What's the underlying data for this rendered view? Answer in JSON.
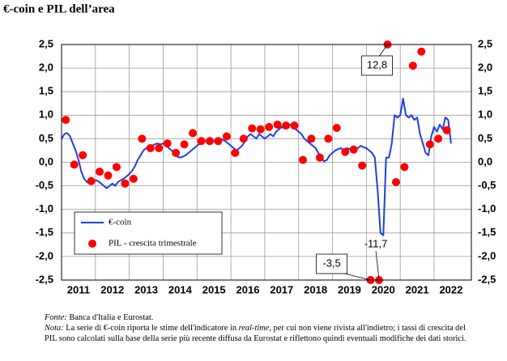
{
  "chart_data": {
    "type": "line",
    "title": "€-coin e PIL dell’area",
    "xlim": [
      2011,
      2023.1
    ],
    "xticks": [
      {
        "value": 2011.5,
        "label": "2011"
      },
      {
        "value": 2012.5,
        "label": "2012"
      },
      {
        "value": 2013.5,
        "label": "2013"
      },
      {
        "value": 2014.5,
        "label": "2014"
      },
      {
        "value": 2015.5,
        "label": "2015"
      },
      {
        "value": 2016.5,
        "label": "2016"
      },
      {
        "value": 2017.5,
        "label": "2017"
      },
      {
        "value": 2018.5,
        "label": "2018"
      },
      {
        "value": 2019.5,
        "label": "2019"
      },
      {
        "value": 2020.5,
        "label": "2020"
      },
      {
        "value": 2021.5,
        "label": "2021"
      },
      {
        "value": 2022.5,
        "label": "2022"
      }
    ],
    "xgrid": [
      2012,
      2013,
      2014,
      2015,
      2016,
      2017,
      2018,
      2019,
      2020,
      2021,
      2022
    ],
    "ylim": [
      -2.5,
      2.5
    ],
    "yticks": [
      {
        "value": -2.5,
        "label": "-2,5"
      },
      {
        "value": -2.0,
        "label": "-2,0"
      },
      {
        "value": -1.5,
        "label": "-1,5"
      },
      {
        "value": -1.0,
        "label": "-1,0"
      },
      {
        "value": -0.5,
        "label": "-0,5"
      },
      {
        "value": 0,
        "label": "0,0"
      },
      {
        "value": 0.5,
        "label": "0,5"
      },
      {
        "value": 1.0,
        "label": "1,0"
      },
      {
        "value": 1.5,
        "label": "1,5"
      },
      {
        "value": 2.0,
        "label": "2,0"
      },
      {
        "value": 2.5,
        "label": "2,5"
      }
    ],
    "y2lim": [
      -2.5,
      2.5
    ],
    "y2ticks": [
      {
        "value": -2.5,
        "label": "-2,5"
      },
      {
        "value": -2.0,
        "label": "-2,0"
      },
      {
        "value": -1.5,
        "label": "-1,5"
      },
      {
        "value": -1.0,
        "label": "-1,0"
      },
      {
        "value": -0.5,
        "label": "-0,5"
      },
      {
        "value": 0,
        "label": "0,0"
      },
      {
        "value": 0.5,
        "label": "0,5"
      },
      {
        "value": 1.0,
        "label": "1,0"
      },
      {
        "value": 1.5,
        "label": "1,5"
      },
      {
        "value": 2.0,
        "label": "2,0"
      },
      {
        "value": 2.5,
        "label": "2,5"
      }
    ],
    "grid": true,
    "legend": "lower-left",
    "series": [
      {
        "name": "€-coin",
        "type": "line",
        "color": "#1f3fe0",
        "x": [
          2011,
          2011.083,
          2011.167,
          2011.25,
          2011.333,
          2011.417,
          2011.5,
          2011.583,
          2011.667,
          2011.75,
          2011.833,
          2011.917,
          2012,
          2012.083,
          2012.167,
          2012.25,
          2012.333,
          2012.417,
          2012.5,
          2012.583,
          2012.667,
          2012.75,
          2012.833,
          2012.917,
          2013,
          2013.083,
          2013.167,
          2013.25,
          2013.333,
          2013.417,
          2013.5,
          2013.583,
          2013.667,
          2013.75,
          2013.833,
          2013.917,
          2014,
          2014.083,
          2014.167,
          2014.25,
          2014.333,
          2014.417,
          2014.5,
          2014.583,
          2014.667,
          2014.75,
          2014.833,
          2014.917,
          2015,
          2015.083,
          2015.167,
          2015.25,
          2015.333,
          2015.417,
          2015.5,
          2015.583,
          2015.667,
          2015.75,
          2015.833,
          2015.917,
          2016,
          2016.083,
          2016.167,
          2016.25,
          2016.333,
          2016.417,
          2016.5,
          2016.583,
          2016.667,
          2016.75,
          2016.833,
          2016.917,
          2017,
          2017.083,
          2017.167,
          2017.25,
          2017.333,
          2017.417,
          2017.5,
          2017.583,
          2017.667,
          2017.75,
          2017.833,
          2017.917,
          2018,
          2018.083,
          2018.167,
          2018.25,
          2018.333,
          2018.417,
          2018.5,
          2018.583,
          2018.667,
          2018.75,
          2018.833,
          2018.917,
          2019,
          2019.083,
          2019.167,
          2019.25,
          2019.333,
          2019.417,
          2019.5,
          2019.583,
          2019.667,
          2019.75,
          2019.833,
          2019.917,
          2020,
          2020.083,
          2020.167,
          2020.25,
          2020.333,
          2020.417,
          2020.5,
          2020.583,
          2020.667,
          2020.75,
          2020.833,
          2020.917,
          2021,
          2021.083,
          2021.167,
          2021.25,
          2021.333,
          2021.417,
          2021.5,
          2021.583,
          2021.667,
          2021.75,
          2021.833,
          2021.917,
          2022,
          2022.083,
          2022.167,
          2022.25,
          2022.333,
          2022.417,
          2022.5
        ],
        "values": [
          0.5,
          0.6,
          0.62,
          0.55,
          0.4,
          0.25,
          0.05,
          -0.2,
          -0.35,
          -0.42,
          -0.45,
          -0.42,
          -0.38,
          -0.4,
          -0.45,
          -0.5,
          -0.55,
          -0.5,
          -0.45,
          -0.5,
          -0.42,
          -0.38,
          -0.35,
          -0.3,
          -0.25,
          -0.18,
          -0.08,
          0.05,
          0.15,
          0.25,
          0.3,
          0.32,
          0.35,
          0.38,
          0.4,
          0.38,
          0.4,
          0.35,
          0.3,
          0.25,
          0.18,
          0.12,
          0.1,
          0.12,
          0.15,
          0.2,
          0.25,
          0.3,
          0.35,
          0.4,
          0.42,
          0.45,
          0.45,
          0.42,
          0.45,
          0.48,
          0.5,
          0.48,
          0.45,
          0.4,
          0.35,
          0.3,
          0.25,
          0.3,
          0.35,
          0.45,
          0.55,
          0.6,
          0.55,
          0.5,
          0.6,
          0.55,
          0.5,
          0.55,
          0.6,
          0.55,
          0.65,
          0.7,
          0.75,
          0.72,
          0.78,
          0.8,
          0.75,
          0.7,
          0.65,
          0.6,
          0.5,
          0.45,
          0.4,
          0.35,
          0.3,
          0.2,
          0.1,
          0.02,
          0.05,
          0.15,
          0.2,
          0.25,
          0.28,
          0.3,
          0.25,
          0.3,
          0.28,
          0.3,
          0.25,
          0.3,
          0.35,
          0.32,
          0.3,
          0.25,
          0.2,
          0.1,
          -0.6,
          -1.5,
          -1.55,
          0.1,
          0.1,
          0.4,
          1.0,
          0.95,
          1.0,
          1.35,
          1.0,
          0.95,
          1.0,
          0.9,
          0.95,
          0.6,
          0.4,
          0.2,
          0.15,
          0.55,
          0.75,
          0.65,
          0.8,
          0.7,
          0.95,
          0.9,
          0.4
        ]
      },
      {
        "name": "PIL - crescita trimestrale",
        "type": "scatter",
        "color": "#ff0000",
        "x": [
          2011.125,
          2011.375,
          2011.625,
          2011.875,
          2012.125,
          2012.375,
          2012.625,
          2012.875,
          2013.125,
          2013.375,
          2013.625,
          2013.875,
          2014.125,
          2014.375,
          2014.625,
          2014.875,
          2015.125,
          2015.375,
          2015.625,
          2015.875,
          2016.125,
          2016.375,
          2016.625,
          2016.875,
          2017.125,
          2017.375,
          2017.625,
          2017.875,
          2018.125,
          2018.375,
          2018.625,
          2018.875,
          2019.125,
          2019.375,
          2019.625,
          2019.875,
          2020.125,
          2020.375,
          2020.625,
          2020.875,
          2021.125,
          2021.375,
          2021.625,
          2021.875,
          2022.125,
          2022.375
        ],
        "values": [
          0.9,
          -0.05,
          0.15,
          -0.4,
          -0.2,
          -0.28,
          -0.1,
          -0.45,
          -0.35,
          0.5,
          0.3,
          0.3,
          0.4,
          0.2,
          0.38,
          0.62,
          0.45,
          0.45,
          0.45,
          0.55,
          0.2,
          0.5,
          0.72,
          0.7,
          0.75,
          0.8,
          0.78,
          0.78,
          0.05,
          0.5,
          0.1,
          0.5,
          0.73,
          0.22,
          0.27,
          -0.07,
          -3.5,
          -11.7,
          12.8,
          -0.42,
          -0.1,
          2.05,
          2.35,
          0.38,
          0.5,
          0.68
        ],
        "value_labels": [
          null,
          null,
          null,
          null,
          null,
          null,
          null,
          null,
          null,
          null,
          null,
          null,
          null,
          null,
          null,
          null,
          null,
          null,
          null,
          null,
          null,
          null,
          null,
          null,
          null,
          null,
          null,
          null,
          null,
          null,
          null,
          null,
          null,
          null,
          null,
          null,
          "-3,5",
          "-11,7",
          "12,8",
          null,
          null,
          null,
          null,
          null,
          null,
          null
        ]
      }
    ]
  },
  "notes": {
    "source_label": "Fonte:",
    "source": "Banca d'Italia e Eurostat.",
    "note_label": "Nota:",
    "note_before": "La serie di €-coin riporta le stime dell'indicatore in",
    "note_italic": "real-time",
    "note_after": ", per cui non viene rivista all'indietro; i tassi di crescita del PIL sono calcolati sulla base della serie più recente diffusa da Eurostat e riflettono quindi eventuali modifiche dei dati storici."
  }
}
